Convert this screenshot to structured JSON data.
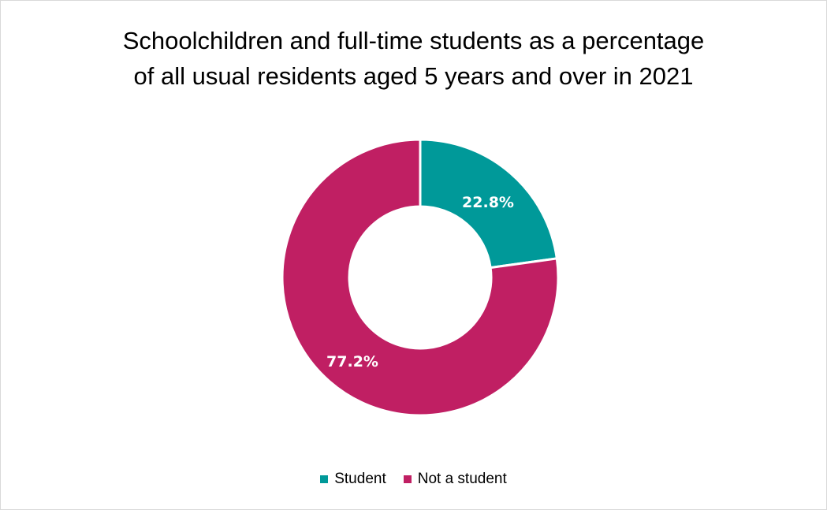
{
  "chart_data": {
    "type": "pie",
    "style": "donut",
    "title_lines": [
      "Schoolchildren and full-time students as a percentage",
      "of all usual residents aged 5 years and over in 2021"
    ],
    "categories": [
      "Student",
      "Not a student"
    ],
    "values": [
      22.8,
      77.2
    ],
    "data_labels": [
      "22.8%",
      "77.2%"
    ],
    "colors": [
      "#009999",
      "#c01f63"
    ],
    "legend_position": "bottom"
  }
}
